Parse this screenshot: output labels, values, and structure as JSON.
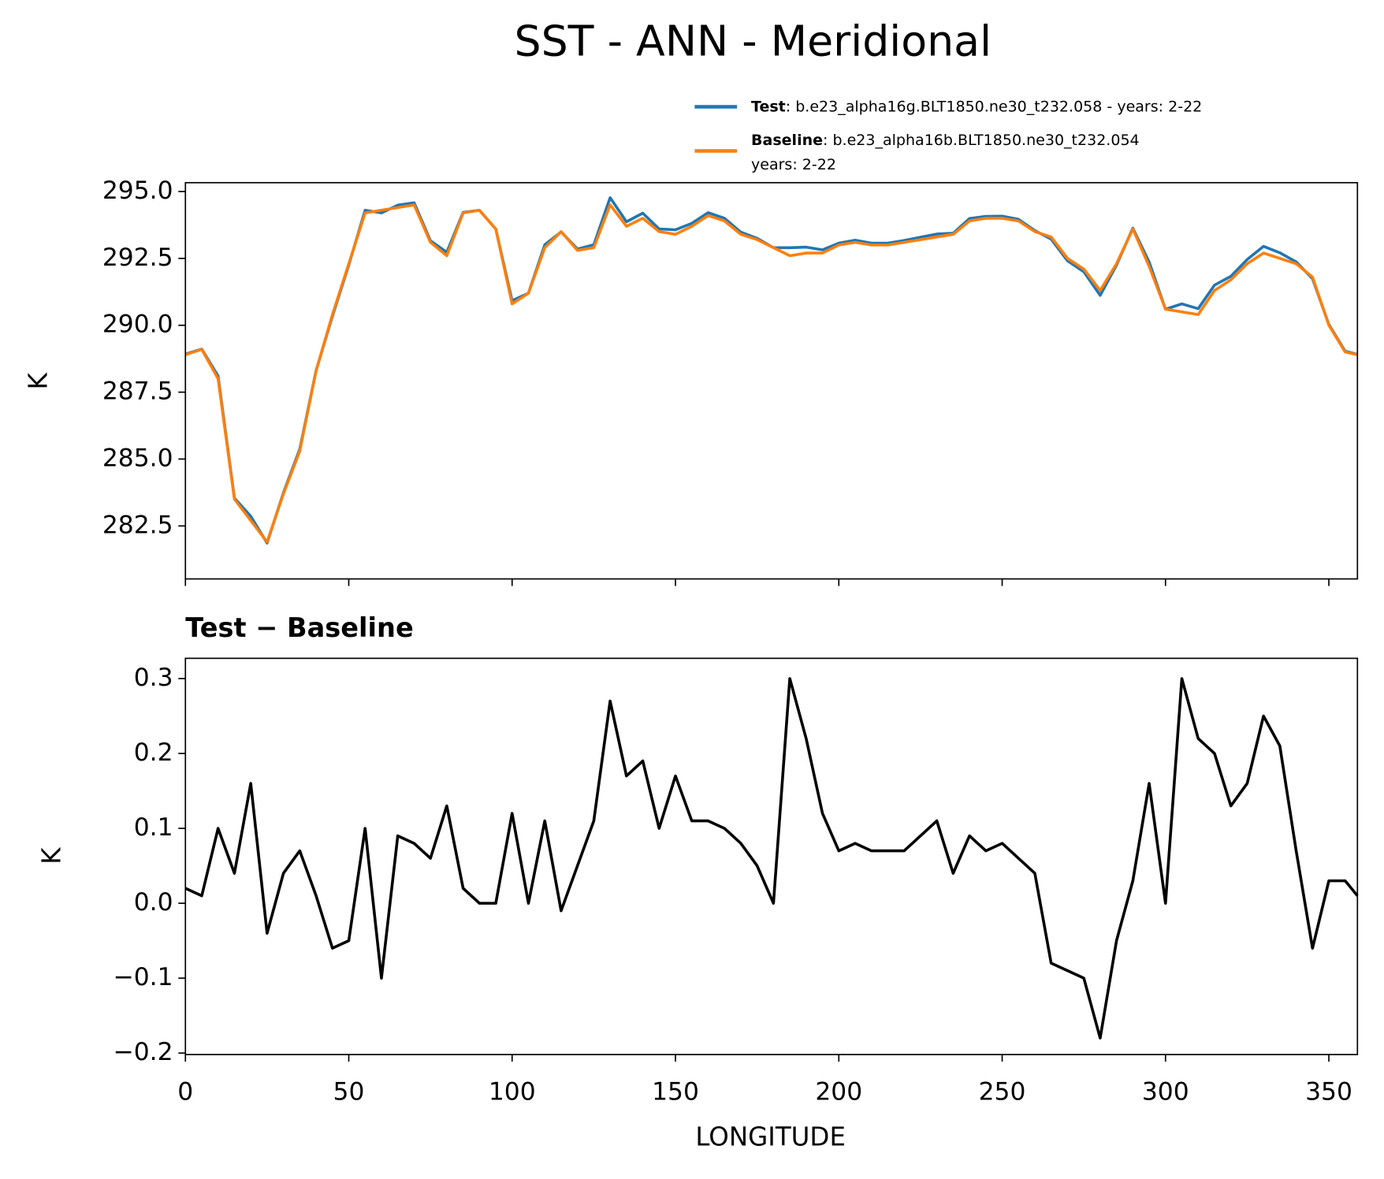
{
  "chart_data": [
    {
      "type": "line",
      "title": "SST - ANN - Meridional",
      "ylabel": "K",
      "x": [
        0,
        5,
        10,
        15,
        20,
        25,
        30,
        35,
        40,
        45,
        50,
        55,
        60,
        65,
        70,
        75,
        80,
        85,
        90,
        95,
        100,
        105,
        110,
        115,
        120,
        125,
        130,
        135,
        140,
        145,
        150,
        155,
        160,
        165,
        170,
        175,
        180,
        185,
        190,
        195,
        200,
        205,
        210,
        215,
        220,
        225,
        230,
        235,
        240,
        245,
        250,
        255,
        260,
        265,
        270,
        275,
        280,
        285,
        290,
        295,
        300,
        305,
        310,
        315,
        320,
        325,
        330,
        335,
        340,
        345,
        350,
        355,
        358.75
      ],
      "series": [
        {
          "name": "Test",
          "label": ": b.e23_alpha16g.BLT1850.ne30_t232.058 - years: 2-22",
          "color": "#1f77b4",
          "values": [
            288.92,
            289.11,
            288.1,
            283.54,
            282.86,
            281.86,
            283.74,
            285.37,
            288.31,
            290.34,
            292.25,
            294.3,
            294.2,
            294.49,
            294.58,
            293.16,
            292.73,
            294.22,
            294.3,
            293.6,
            290.92,
            291.2,
            293.01,
            293.49,
            292.85,
            293.01,
            294.77,
            293.87,
            294.19,
            293.6,
            293.57,
            293.81,
            294.21,
            294.0,
            293.48,
            293.25,
            292.9,
            292.9,
            292.92,
            292.82,
            293.07,
            293.18,
            293.07,
            293.07,
            293.17,
            293.29,
            293.41,
            293.44,
            293.99,
            294.07,
            294.08,
            293.96,
            293.54,
            293.22,
            292.41,
            292.0,
            291.12,
            292.25,
            293.63,
            292.36,
            290.6,
            290.8,
            290.62,
            291.5,
            291.83,
            292.46,
            292.95,
            292.71,
            292.37,
            291.74,
            290.03,
            289.03,
            288.91
          ]
        },
        {
          "name": "Baseline",
          "label": ": b.e23_alpha16b.BLT1850.ne30_t232.054",
          "label_line2": "years: 2-22",
          "color": "#ff7f0e",
          "values": [
            288.9,
            289.1,
            288.0,
            283.5,
            282.7,
            281.9,
            283.7,
            285.3,
            288.3,
            290.4,
            292.3,
            294.2,
            294.3,
            294.4,
            294.5,
            293.1,
            292.6,
            294.2,
            294.3,
            293.6,
            290.8,
            291.2,
            292.9,
            293.5,
            292.8,
            292.9,
            294.5,
            293.7,
            294.0,
            293.5,
            293.4,
            293.7,
            294.1,
            293.9,
            293.4,
            293.2,
            292.9,
            292.6,
            292.7,
            292.7,
            293.0,
            293.1,
            293.0,
            293.0,
            293.1,
            293.2,
            293.3,
            293.4,
            293.9,
            294.0,
            294.0,
            293.9,
            293.5,
            293.3,
            292.5,
            292.1,
            291.3,
            292.3,
            293.6,
            292.2,
            290.6,
            290.5,
            290.4,
            291.3,
            291.7,
            292.3,
            292.7,
            292.5,
            292.3,
            291.8,
            290.0,
            289.0,
            288.9
          ]
        }
      ],
      "xlim": [
        0,
        358.75
      ],
      "xticks": [
        0,
        50,
        100,
        150,
        200,
        250,
        300,
        350
      ],
      "ylim": [
        280.52,
        295.33
      ],
      "yticks": [
        282.5,
        {
          "value": 285,
          "label": "285.0"
        },
        287.5,
        {
          "value": 290,
          "label": "290.0"
        },
        292.5,
        {
          "value": 295,
          "label": "295.0"
        }
      ]
    },
    {
      "type": "line",
      "title": "Test − Baseline",
      "xlabel": "LONGITUDE",
      "ylabel": "K",
      "color": "#000000",
      "x": [
        0,
        5,
        10,
        15,
        20,
        25,
        30,
        35,
        40,
        45,
        50,
        55,
        60,
        65,
        70,
        75,
        80,
        85,
        90,
        95,
        100,
        105,
        110,
        115,
        120,
        125,
        130,
        135,
        140,
        145,
        150,
        155,
        160,
        165,
        170,
        175,
        180,
        185,
        190,
        195,
        200,
        205,
        210,
        215,
        220,
        225,
        230,
        235,
        240,
        245,
        250,
        255,
        260,
        265,
        270,
        275,
        280,
        285,
        290,
        295,
        300,
        305,
        310,
        315,
        320,
        325,
        330,
        335,
        340,
        345,
        350,
        355,
        358.75
      ],
      "values": [
        0.02,
        0.01,
        0.1,
        0.04,
        0.16,
        -0.04,
        0.04,
        0.07,
        0.01,
        -0.06,
        -0.05,
        0.1,
        -0.1,
        0.09,
        0.08,
        0.06,
        0.13,
        0.02,
        0.0,
        0.0,
        0.12,
        0.0,
        0.11,
        -0.01,
        0.05,
        0.11,
        0.27,
        0.17,
        0.19,
        0.1,
        0.17,
        0.11,
        0.11,
        0.1,
        0.08,
        0.05,
        0.0,
        0.3,
        0.22,
        0.12,
        0.07,
        0.08,
        0.07,
        0.07,
        0.07,
        0.09,
        0.11,
        0.04,
        0.09,
        0.07,
        0.08,
        0.06,
        0.04,
        -0.08,
        -0.09,
        -0.1,
        -0.18,
        -0.05,
        0.03,
        0.16,
        0.0,
        0.3,
        0.22,
        0.2,
        0.13,
        0.16,
        0.25,
        0.21,
        0.07,
        -0.06,
        0.03,
        0.03,
        0.01
      ],
      "xlim": [
        0,
        358.75
      ],
      "xticks": [
        0,
        50,
        100,
        150,
        200,
        250,
        300,
        350
      ],
      "ylim": [
        -0.202,
        0.327
      ],
      "yticks": [
        {
          "value": -0.2,
          "label": "−0.2"
        },
        {
          "value": -0.1,
          "label": "−0.1"
        },
        {
          "value": 0,
          "label": "0.0"
        },
        0.1,
        0.2,
        0.3
      ]
    }
  ]
}
